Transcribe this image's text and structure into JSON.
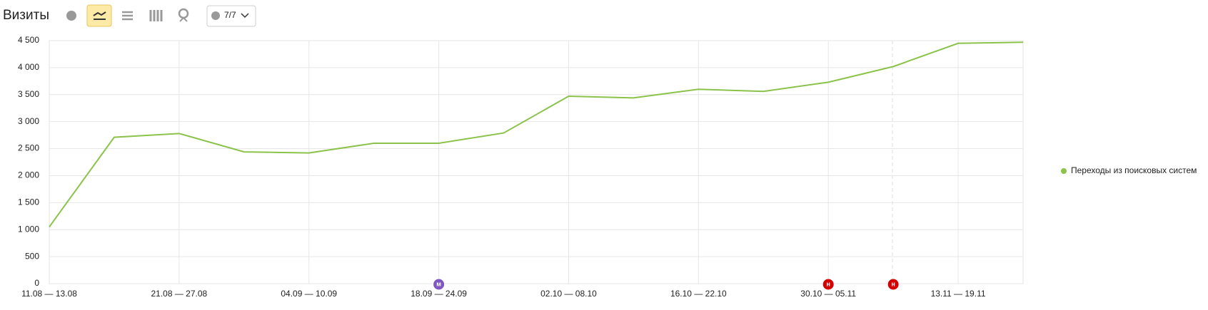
{
  "chart_data": {
    "type": "line",
    "title": "Визиты",
    "comments_filter": "7/7",
    "categories": [
      "11.08 — 13.08",
      null,
      "21.08 — 27.08",
      null,
      "04.09 — 10.09",
      null,
      "18.09 — 24.09",
      null,
      "02.10 — 08.10",
      null,
      "16.10 — 22.10",
      null,
      "30.10 — 05.11",
      null,
      "13.11 — 19.11",
      null
    ],
    "series": [
      {
        "name": "Переходы из поисковых систем",
        "color": "#8bc34a",
        "values": [
          1050,
          2710,
          2780,
          2440,
          2420,
          2600,
          2600,
          2790,
          3470,
          3440,
          3600,
          3560,
          3730,
          4020,
          4450,
          4470
        ]
      }
    ],
    "ylim": [
      0,
      4500
    ],
    "yticks": [
      0,
      500,
      {
        "value": 1000,
        "label": "1 000"
      },
      {
        "value": 1500,
        "label": "1 500"
      },
      {
        "value": 2000,
        "label": "2 000"
      },
      {
        "value": 2500,
        "label": "2 500"
      },
      {
        "value": 3000,
        "label": "3 000"
      },
      {
        "value": 3500,
        "label": "3 500"
      },
      {
        "value": 4000,
        "label": "4 000"
      },
      {
        "value": 4500,
        "label": "4 500"
      }
    ],
    "grid": true,
    "legend": "right",
    "annotations": [
      {
        "label": "м",
        "at": 6,
        "color": "#7e57c2"
      },
      {
        "label": "н",
        "at": 12,
        "color": "#d50000"
      },
      {
        "label": "н",
        "at": 13,
        "color": "#d50000"
      }
    ]
  }
}
